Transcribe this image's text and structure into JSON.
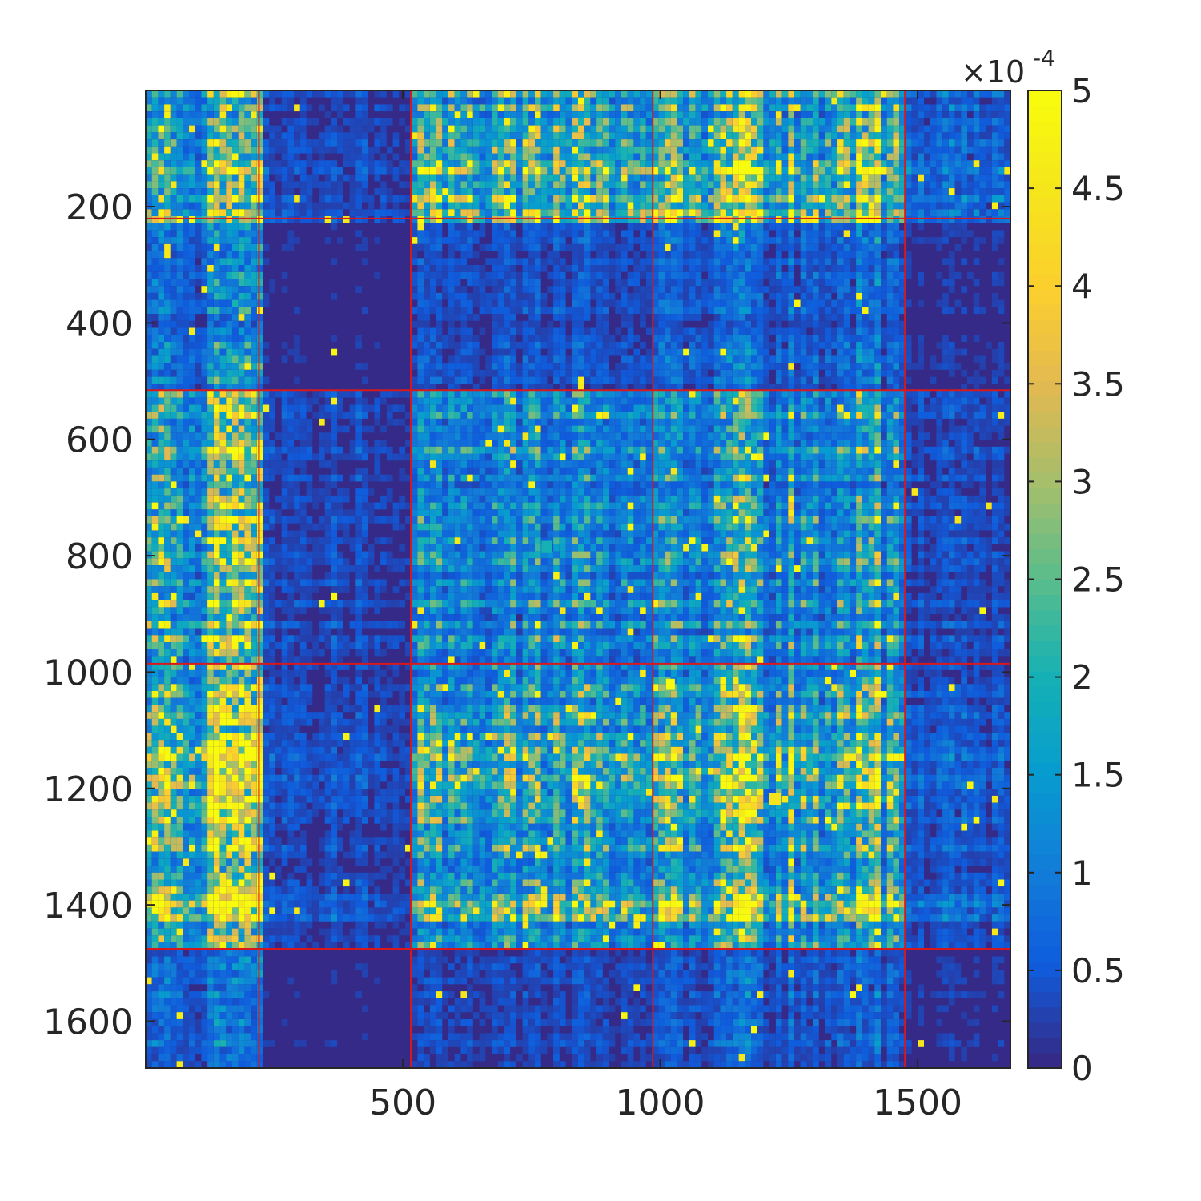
{
  "chart_data": {
    "type": "heatmap",
    "title": "",
    "xlabel": "",
    "ylabel": "",
    "n": 1680,
    "xlim": [
      0.5,
      1680.5
    ],
    "ylim": [
      0.5,
      1680.5
    ],
    "y_direction": "reverse",
    "x_ticks": [
      500,
      1000,
      1500
    ],
    "x_tick_labels": [
      "500",
      "1000",
      "1500"
    ],
    "y_ticks": [
      200,
      400,
      600,
      800,
      1000,
      1200,
      1400,
      1600
    ],
    "y_tick_labels": [
      "200",
      "400",
      "600",
      "800",
      "1000",
      "1200",
      "1400",
      "1600"
    ],
    "colormap": "parula",
    "color_limits": [
      0,
      0.0005
    ],
    "colorbar": {
      "position": "right",
      "multiplier": "×10",
      "exponent": "-4",
      "ticks": [
        0,
        0.5,
        1,
        1.5,
        2,
        2.5,
        3,
        3.5,
        4,
        4.5,
        5
      ],
      "tick_labels": [
        "0",
        "0.5",
        "1",
        "1.5",
        "2",
        "2.5",
        "3",
        "3.5",
        "4",
        "4.5",
        "5"
      ]
    },
    "grid": false,
    "block_boundaries": [
      220,
      515,
      985,
      1475
    ],
    "boundary_color": "#d7191c",
    "blocks": [
      {
        "range": [
          1,
          220
        ]
      },
      {
        "range": [
          221,
          515
        ]
      },
      {
        "range": [
          516,
          985
        ]
      },
      {
        "range": [
          986,
          1475
        ]
      },
      {
        "range": [
          1476,
          1680
        ]
      }
    ],
    "block_mean_intensity": [
      [
        0.22,
        0.05,
        0.3,
        0.28,
        0.1
      ],
      [
        0.12,
        0.02,
        0.07,
        0.09,
        0.03
      ],
      [
        0.3,
        0.06,
        0.22,
        0.22,
        0.07
      ],
      [
        0.33,
        0.06,
        0.27,
        0.28,
        0.08
      ],
      [
        0.1,
        0.02,
        0.06,
        0.08,
        0.03
      ]
    ],
    "hot_ranges": [
      [
        110,
        230
      ],
      [
        1115,
        1185
      ],
      [
        1240,
        1255
      ],
      [
        1375,
        1420
      ]
    ],
    "bright_blocks": [
      {
        "x": [
          1012,
          1028
        ],
        "y": [
          1012,
          1030
        ],
        "value": 0.0005
      },
      {
        "x": [
          1212,
          1234
        ],
        "y": [
          1208,
          1228
        ],
        "value": 0.00045
      },
      {
        "x": [
          770,
          790
        ],
        "y": [
          775,
          795
        ],
        "value": 0.0002
      }
    ],
    "colors": {
      "low": "#352a87",
      "mid": "#0f9fd0",
      "high": "#f9fb0e",
      "axis": "#262626"
    }
  }
}
